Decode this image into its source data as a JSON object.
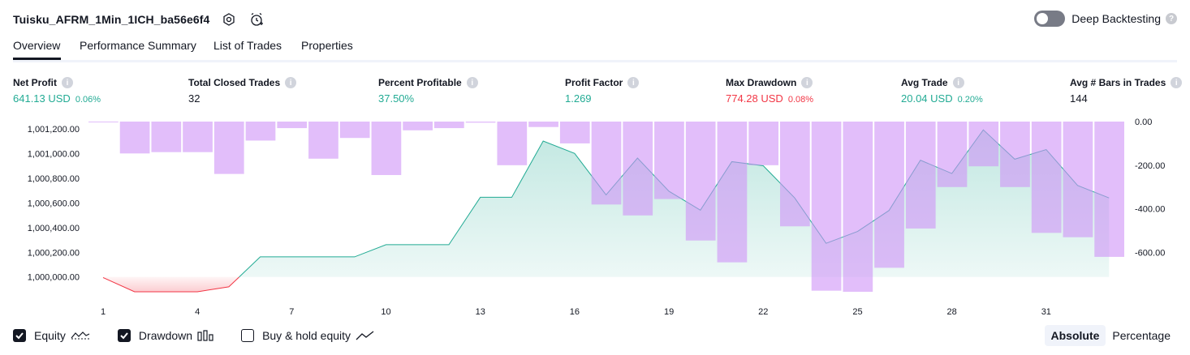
{
  "header": {
    "strategy_name": "Tuisku_AFRM_1Min_1ICH_ba56e6f4",
    "settings_icon": "gear-icon",
    "alert_icon": "alarm-add-icon"
  },
  "deep_backtesting": {
    "label": "Deep Backtesting",
    "enabled": false
  },
  "tabs": [
    {
      "label": "Overview",
      "active": true
    },
    {
      "label": "Performance Summary",
      "active": false
    },
    {
      "label": "List of Trades",
      "active": false
    },
    {
      "label": "Properties",
      "active": false
    }
  ],
  "metrics": [
    {
      "label": "Net Profit",
      "value": "641.13 USD",
      "percent": "0.06%",
      "color": "green"
    },
    {
      "label": "Total Closed Trades",
      "value": "32",
      "percent": "",
      "color": "black"
    },
    {
      "label": "Percent Profitable",
      "value": "37.50%",
      "percent": "",
      "color": "green"
    },
    {
      "label": "Profit Factor",
      "value": "1.269",
      "percent": "",
      "color": "green"
    },
    {
      "label": "Max Drawdown",
      "value": "774.28 USD",
      "percent": "0.08%",
      "color": "red"
    },
    {
      "label": "Avg Trade",
      "value": "20.04 USD",
      "percent": "0.20%",
      "color": "green"
    },
    {
      "label": "Avg # Bars in Trades",
      "value": "144",
      "percent": "",
      "color": "black"
    }
  ],
  "chart_data": {
    "type": "line",
    "x": [
      1,
      2,
      3,
      4,
      5,
      6,
      7,
      8,
      9,
      10,
      11,
      12,
      13,
      14,
      15,
      16,
      17,
      18,
      19,
      20,
      21,
      22,
      23,
      24,
      25,
      26,
      27,
      28,
      29,
      30,
      31,
      32,
      33
    ],
    "xticks": [
      "1",
      "4",
      "7",
      "10",
      "13",
      "16",
      "19",
      "22",
      "25",
      "28",
      "31"
    ],
    "series": [
      {
        "name": "Equity",
        "axis": "left",
        "values": [
          999995,
          999880,
          999880,
          999880,
          999920,
          1000163,
          1000163,
          1000163,
          1000163,
          1000262,
          1000262,
          1000262,
          1000646,
          1000646,
          1001102,
          1001002,
          1000666,
          1000964,
          1000695,
          1000542,
          1000935,
          1000902,
          1000641,
          1000273,
          1000369,
          1000539,
          1000947,
          1000839,
          1001193,
          1000955,
          1001033,
          1000742,
          1000641
        ]
      },
      {
        "name": "Drawdown",
        "axis": "right",
        "values": [
          -3,
          -146,
          -140,
          -140,
          -240,
          -87,
          -30,
          -170,
          -75,
          -245,
          -40,
          -30,
          -5,
          -200,
          -25,
          -100,
          -380,
          -430,
          -355,
          -545,
          -645,
          -200,
          -480,
          -775,
          -780,
          -670,
          -490,
          -300,
          -205,
          -300,
          -510,
          -530,
          -620
        ]
      }
    ],
    "left_ticks": [
      "1,000,000.00",
      "1,000,200.00",
      "1,000,400.00",
      "1,000,600.00",
      "1,000,800.00",
      "1,001,000.00",
      "1,001,200.00"
    ],
    "left_range": [
      999880,
      1001260
    ],
    "right_ticks": [
      "0.00",
      "-200.00",
      "-400.00",
      "-600.00"
    ],
    "right_range": [
      -780,
      0
    ],
    "baseline": 1000000,
    "colors": {
      "equity_line": "#22ab94",
      "equity_fill": "#22ab94",
      "equity_loss": "#f23645",
      "drawdown_bar": "#ce93f6"
    }
  },
  "footer": {
    "legend": [
      {
        "label": "Equity",
        "checked": true,
        "icon": "equity-line-icon"
      },
      {
        "label": "Drawdown",
        "checked": true,
        "icon": "drawdown-bars-icon"
      },
      {
        "label": "Buy & hold equity",
        "checked": false,
        "icon": "buy-hold-line-icon"
      }
    ],
    "modes": [
      {
        "label": "Absolute",
        "selected": true
      },
      {
        "label": "Percentage",
        "selected": false
      }
    ]
  }
}
